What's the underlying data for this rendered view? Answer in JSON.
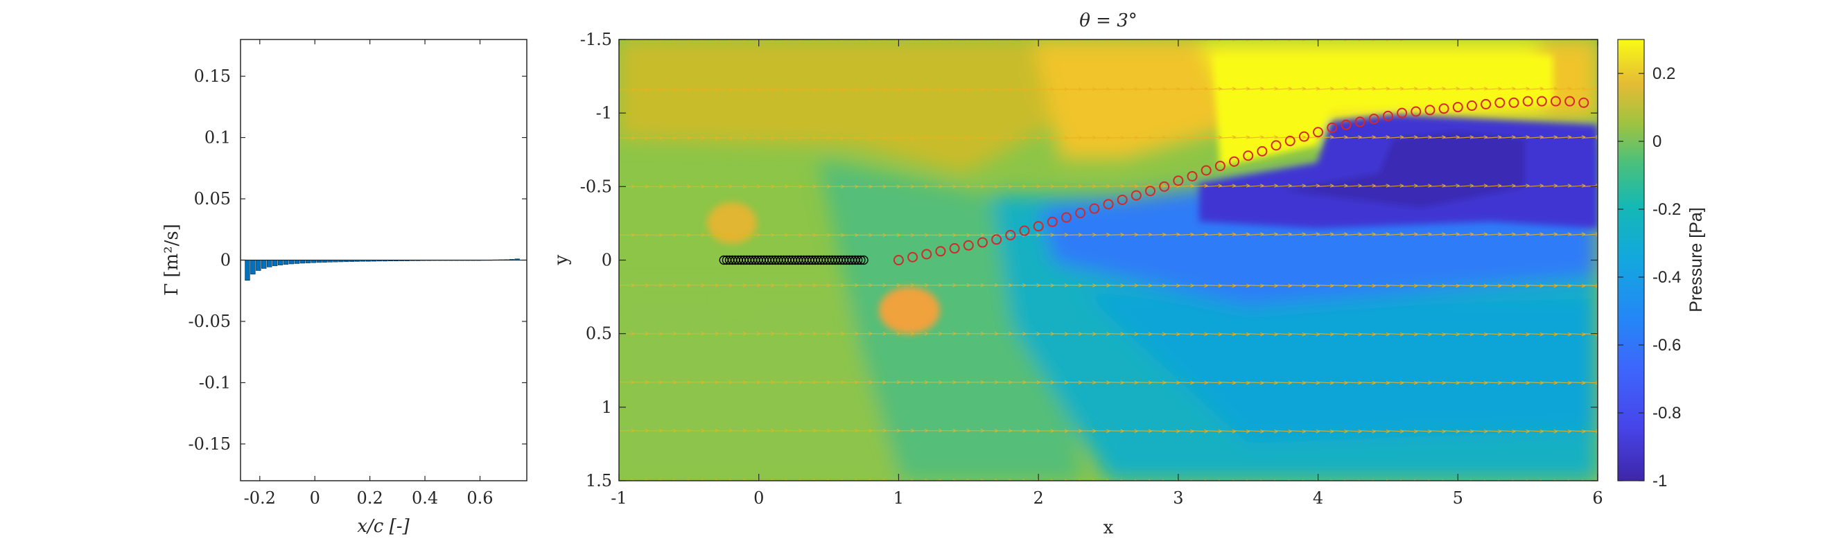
{
  "chart_data": [
    {
      "type": "bar",
      "panel": "left",
      "title": "",
      "xlabel": "x/c [-]",
      "ylabel": "Γ [m²/s]",
      "xlim": [
        -0.27,
        0.77
      ],
      "ylim": [
        -0.18,
        0.18
      ],
      "xticks": [
        "-0.2",
        "0",
        "0.2",
        "0.4",
        "0.6"
      ],
      "yticks": [
        "0.15",
        "0.1",
        "0.05",
        "0",
        "-0.05",
        "-0.1",
        "-0.15"
      ],
      "x": [
        -0.245,
        -0.225,
        -0.205,
        -0.185,
        -0.165,
        -0.145,
        -0.125,
        -0.105,
        -0.085,
        -0.065,
        -0.045,
        -0.025,
        -0.005,
        0.015,
        0.035,
        0.055,
        0.075,
        0.095,
        0.115,
        0.135,
        0.155,
        0.175,
        0.195,
        0.215,
        0.235,
        0.255,
        0.275,
        0.295,
        0.315,
        0.335,
        0.355,
        0.375,
        0.395,
        0.415,
        0.435,
        0.455,
        0.475,
        0.495,
        0.515,
        0.535,
        0.555,
        0.575,
        0.595,
        0.615,
        0.635,
        0.655,
        0.675,
        0.695,
        0.715,
        0.735
      ],
      "values": [
        -0.0165,
        -0.0115,
        -0.0085,
        -0.0068,
        -0.0056,
        -0.0047,
        -0.004,
        -0.0035,
        -0.0031,
        -0.0028,
        -0.0025,
        -0.0023,
        -0.0021,
        -0.0019,
        -0.0018,
        -0.0016,
        -0.0015,
        -0.0014,
        -0.0013,
        -0.0012,
        -0.0011,
        -0.001,
        -0.001,
        -0.0009,
        -0.0008,
        -0.0008,
        -0.0007,
        -0.0007,
        -0.0006,
        -0.0006,
        -0.0005,
        -0.0005,
        -0.0004,
        -0.0004,
        -0.0003,
        -0.0003,
        -0.0002,
        -0.0002,
        -0.0002,
        -0.0001,
        -0.0001,
        -0.0001,
        0.0,
        0.0001,
        0.0001,
        0.0002,
        0.0003,
        0.0004,
        0.0006,
        0.001
      ],
      "bar_color": "#0072BD",
      "grid": false
    },
    {
      "type": "heatmap",
      "panel": "right",
      "title": "θ = 3°",
      "xlabel": "x",
      "ylabel": "y",
      "xlim": [
        -1,
        6
      ],
      "ylim": [
        -1.5,
        1.5
      ],
      "y_axis_reversed": true,
      "xticks": [
        "-1",
        "0",
        "1",
        "2",
        "3",
        "4",
        "5",
        "6"
      ],
      "yticks": [
        "-1.5",
        "-1",
        "-0.5",
        "0",
        "0.5",
        "1",
        "1.5"
      ],
      "colorbar": {
        "label": "Pressure [Pa]",
        "range": [
          -1,
          0.3
        ],
        "ticks": [
          "0.2",
          "0",
          "-0.2",
          "-0.4",
          "-0.6",
          "-0.8",
          "-1"
        ],
        "colormap": "parula"
      },
      "plate_points": {
        "x_range": [
          -0.25,
          0.75
        ],
        "count": 50,
        "y": 0,
        "marker_color": "#000000"
      },
      "wake_points": {
        "x": [
          1.0,
          1.1,
          1.2,
          1.3,
          1.4,
          1.5,
          1.6,
          1.7,
          1.8,
          1.9,
          2.0,
          2.1,
          2.2,
          2.3,
          2.4,
          2.5,
          2.6,
          2.7,
          2.8,
          2.9,
          3.0,
          3.1,
          3.2,
          3.3,
          3.4,
          3.5,
          3.6,
          3.7,
          3.8,
          3.9,
          4.0,
          4.1,
          4.2,
          4.3,
          4.4,
          4.5,
          4.6,
          4.7,
          4.8,
          4.9,
          5.0,
          5.1,
          5.2,
          5.3,
          5.4,
          5.5,
          5.6,
          5.7,
          5.8,
          5.9
        ],
        "y": [
          0.0,
          -0.02,
          -0.04,
          -0.06,
          -0.08,
          -0.1,
          -0.12,
          -0.14,
          -0.17,
          -0.2,
          -0.23,
          -0.26,
          -0.29,
          -0.32,
          -0.35,
          -0.38,
          -0.41,
          -0.44,
          -0.47,
          -0.5,
          -0.54,
          -0.57,
          -0.61,
          -0.64,
          -0.67,
          -0.71,
          -0.74,
          -0.78,
          -0.81,
          -0.84,
          -0.87,
          -0.9,
          -0.92,
          -0.94,
          -0.96,
          -0.98,
          -1.0,
          -1.01,
          -1.02,
          -1.03,
          -1.04,
          -1.05,
          -1.06,
          -1.07,
          -1.07,
          -1.08,
          -1.08,
          -1.08,
          -1.08,
          -1.07
        ],
        "marker_color": "#D62728"
      },
      "velocity_rows_y": [
        -1.5,
        -1.16,
        -0.83,
        -0.5,
        -0.17,
        0.17,
        0.5,
        0.83,
        1.16,
        1.5
      ],
      "arrow_color": "#EDB120"
    }
  ]
}
